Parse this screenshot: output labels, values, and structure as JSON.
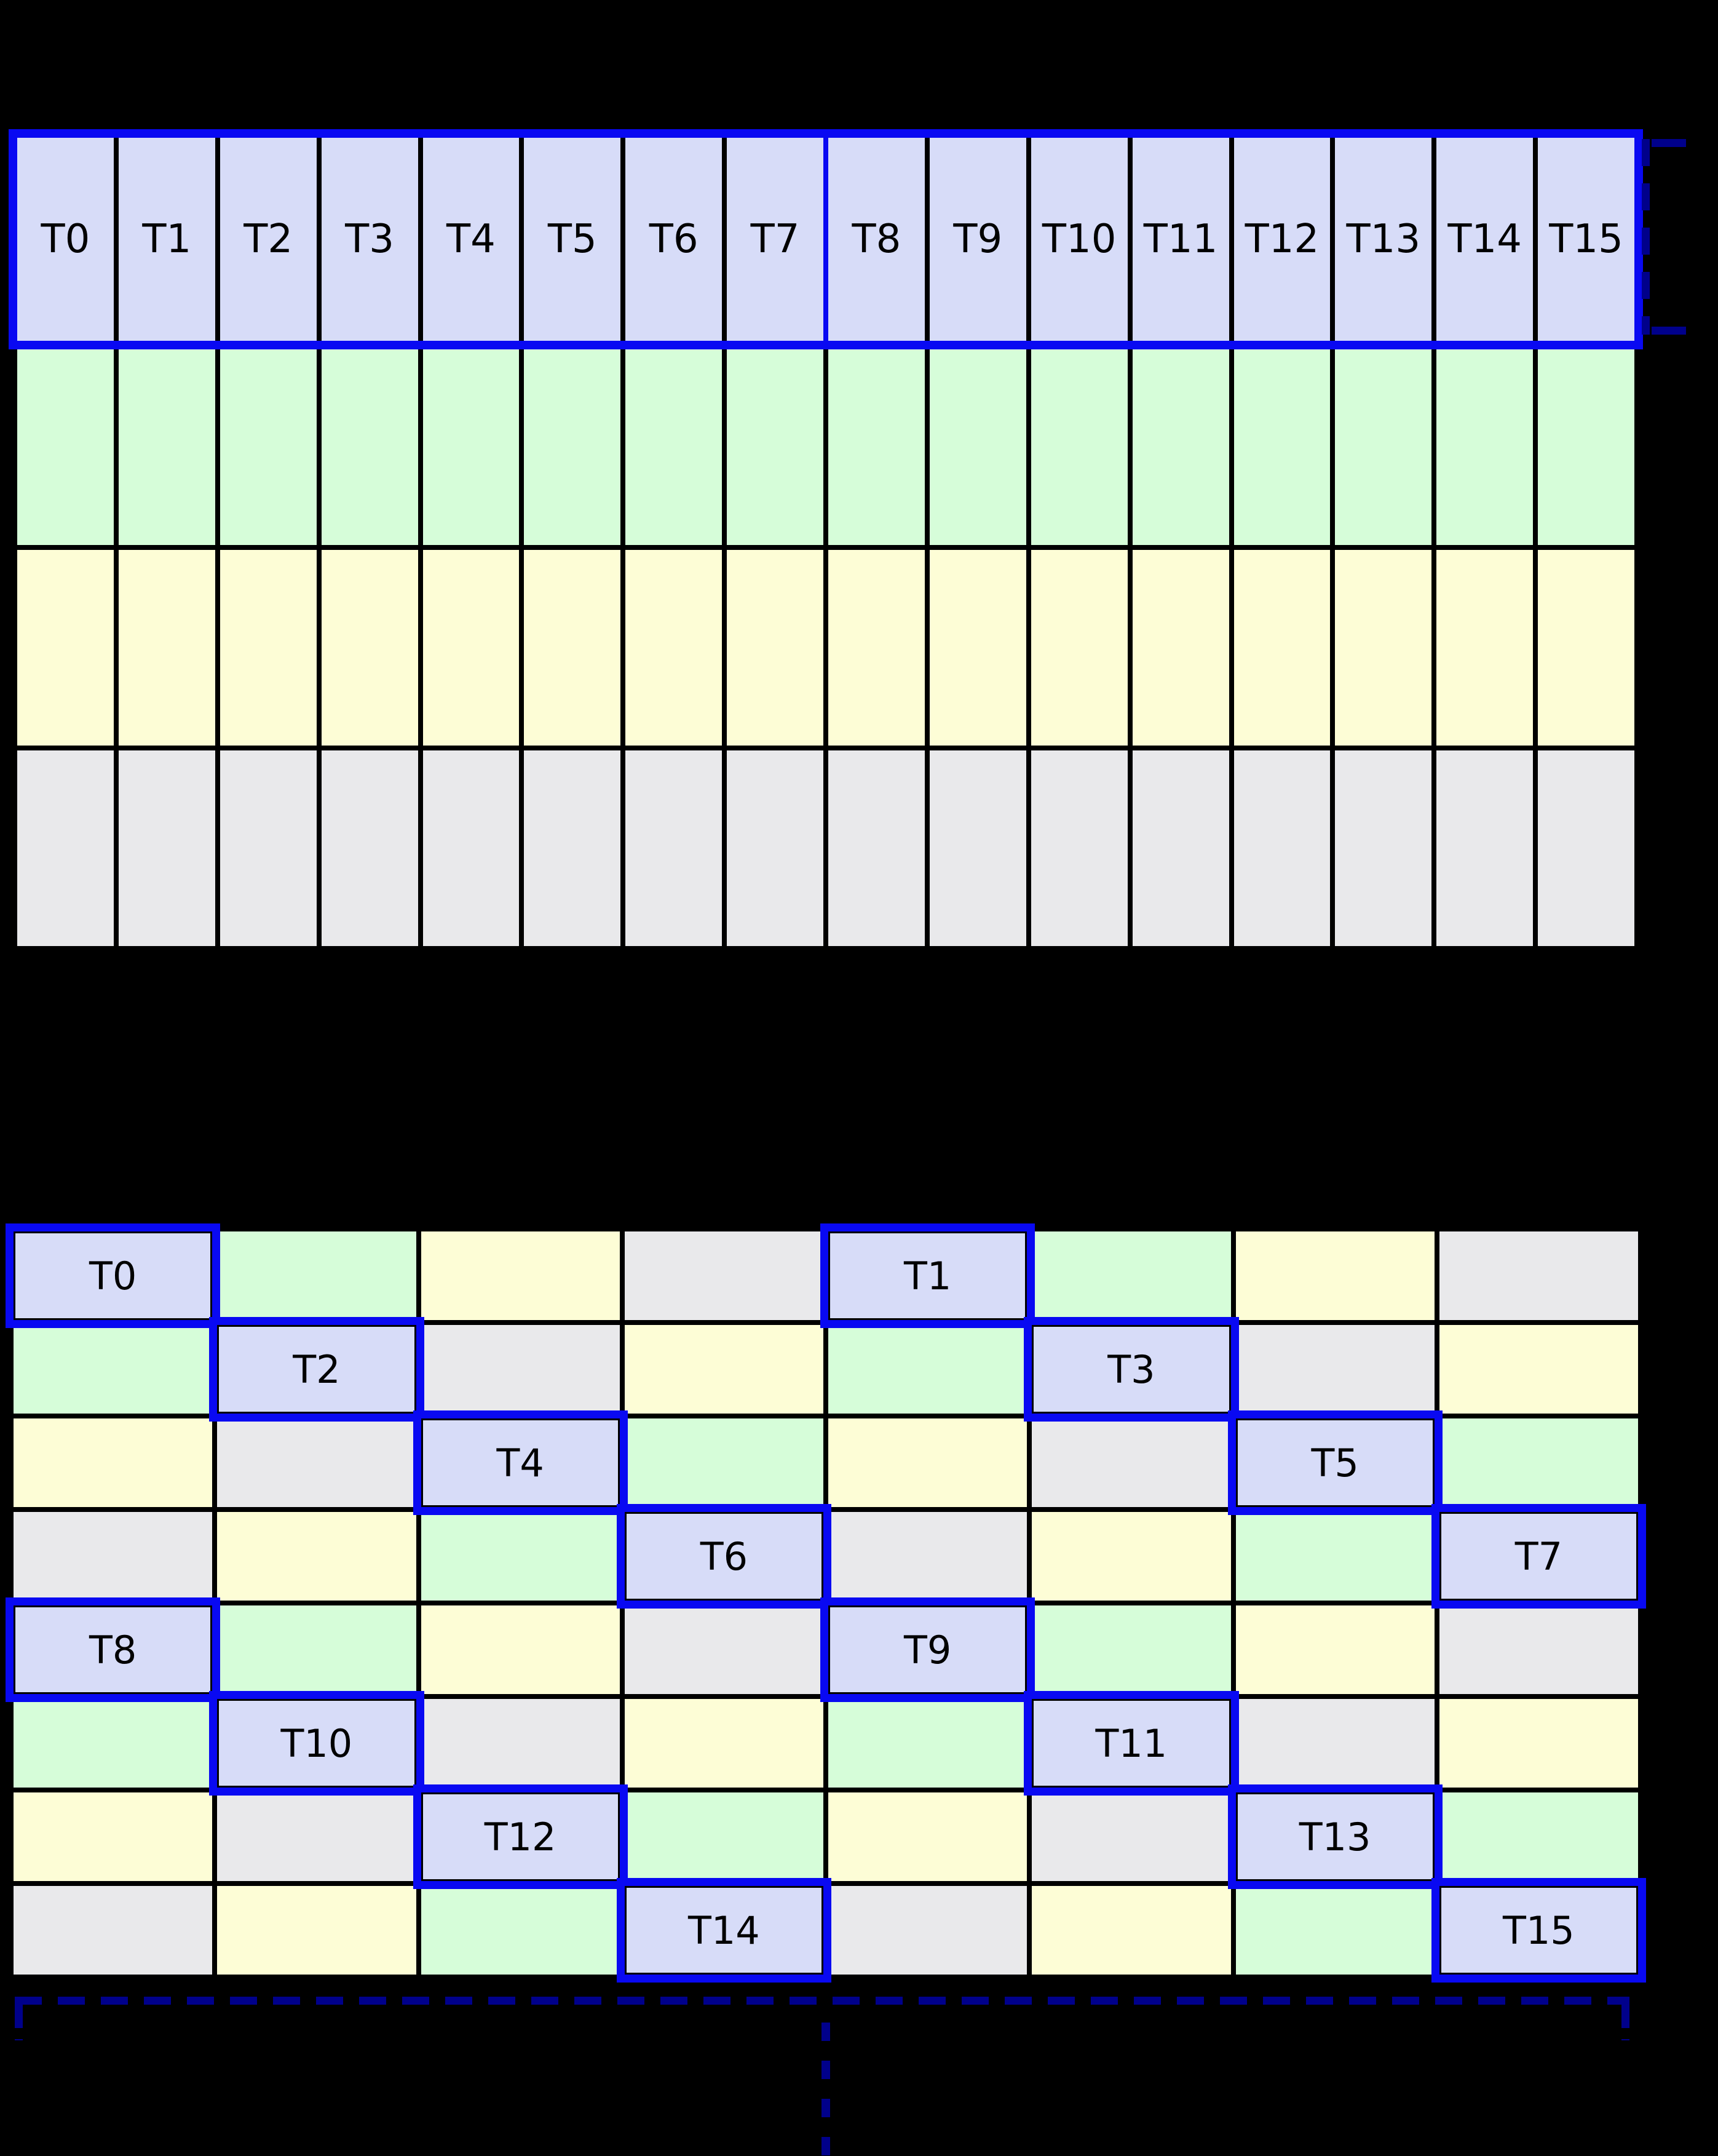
{
  "colors": {
    "background": "#000000",
    "grid_line": "#000000",
    "cell_blue": "#d7dcf8",
    "cell_green": "#d6fdd9",
    "cell_yellow": "#fdfdd6",
    "cell_gray": "#e9e9eb",
    "highlight_border": "#0909f2",
    "bracket_navy": "#00008b",
    "label_text": "#000000"
  },
  "top_grid": {
    "column_count": 16,
    "thread_row_color": "blue",
    "thread_labels": [
      "T0",
      "T1",
      "T2",
      "T3",
      "T4",
      "T5",
      "T6",
      "T7",
      "T8",
      "T9",
      "T10",
      "T11",
      "T12",
      "T13",
      "T14",
      "T15"
    ],
    "split_after_column": 8,
    "body_row_colors": [
      "green",
      "yellow",
      "gray"
    ]
  },
  "bottom_grid": {
    "row_count": 8,
    "column_count": 8,
    "color_rule": "color index = (col % 4) XOR (row % 4) over [blue, green, yellow, gray]",
    "rows": [
      [
        {
          "color": "blue",
          "label": "T0"
        },
        {
          "color": "green"
        },
        {
          "color": "yellow"
        },
        {
          "color": "gray"
        },
        {
          "color": "blue",
          "label": "T1"
        },
        {
          "color": "green"
        },
        {
          "color": "yellow"
        },
        {
          "color": "gray"
        }
      ],
      [
        {
          "color": "green"
        },
        {
          "color": "blue",
          "label": "T2"
        },
        {
          "color": "gray"
        },
        {
          "color": "yellow"
        },
        {
          "color": "green"
        },
        {
          "color": "blue",
          "label": "T3"
        },
        {
          "color": "gray"
        },
        {
          "color": "yellow"
        }
      ],
      [
        {
          "color": "yellow"
        },
        {
          "color": "gray"
        },
        {
          "color": "blue",
          "label": "T4"
        },
        {
          "color": "green"
        },
        {
          "color": "yellow"
        },
        {
          "color": "gray"
        },
        {
          "color": "blue",
          "label": "T5"
        },
        {
          "color": "green"
        }
      ],
      [
        {
          "color": "gray"
        },
        {
          "color": "yellow"
        },
        {
          "color": "green"
        },
        {
          "color": "blue",
          "label": "T6"
        },
        {
          "color": "gray"
        },
        {
          "color": "yellow"
        },
        {
          "color": "green"
        },
        {
          "color": "blue",
          "label": "T7"
        }
      ],
      [
        {
          "color": "blue",
          "label": "T8"
        },
        {
          "color": "green"
        },
        {
          "color": "yellow"
        },
        {
          "color": "gray"
        },
        {
          "color": "blue",
          "label": "T9"
        },
        {
          "color": "green"
        },
        {
          "color": "yellow"
        },
        {
          "color": "gray"
        }
      ],
      [
        {
          "color": "green"
        },
        {
          "color": "blue",
          "label": "T10"
        },
        {
          "color": "gray"
        },
        {
          "color": "yellow"
        },
        {
          "color": "green"
        },
        {
          "color": "blue",
          "label": "T11"
        },
        {
          "color": "gray"
        },
        {
          "color": "yellow"
        }
      ],
      [
        {
          "color": "yellow"
        },
        {
          "color": "gray"
        },
        {
          "color": "blue",
          "label": "T12"
        },
        {
          "color": "green"
        },
        {
          "color": "yellow"
        },
        {
          "color": "gray"
        },
        {
          "color": "blue",
          "label": "T13"
        },
        {
          "color": "green"
        }
      ],
      [
        {
          "color": "gray"
        },
        {
          "color": "yellow"
        },
        {
          "color": "green"
        },
        {
          "color": "blue",
          "label": "T14"
        },
        {
          "color": "gray"
        },
        {
          "color": "yellow"
        },
        {
          "color": "green"
        },
        {
          "color": "blue",
          "label": "T15"
        }
      ]
    ]
  }
}
